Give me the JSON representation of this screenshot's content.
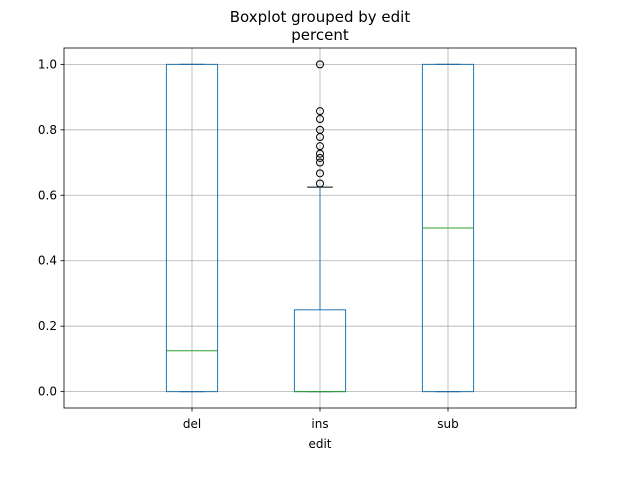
{
  "chart_data": {
    "type": "boxplot",
    "suptitle": "Boxplot grouped by edit",
    "title": "percent",
    "xlabel": "edit",
    "ylabel": "",
    "ylim": [
      -0.05,
      1.05
    ],
    "yticks": [
      0.0,
      0.2,
      0.4,
      0.6,
      0.8,
      1.0
    ],
    "ytick_labels": [
      "0.0",
      "0.2",
      "0.4",
      "0.6",
      "0.8",
      "1.0"
    ],
    "grid": true,
    "categories": [
      "del",
      "ins",
      "sub"
    ],
    "boxes": [
      {
        "name": "del",
        "whisker_low": 0.0,
        "q1": 0.0,
        "median": 0.125,
        "q3": 1.0,
        "whisker_high": 1.0,
        "outliers": []
      },
      {
        "name": "ins",
        "whisker_low": 0.0,
        "q1": 0.0,
        "median": 0.0,
        "q3": 0.25,
        "whisker_high": 0.625,
        "outliers": [
          0.636,
          0.667,
          0.7,
          0.714,
          0.727,
          0.75,
          0.778,
          0.8,
          0.833,
          0.857,
          1.0
        ]
      },
      {
        "name": "sub",
        "whisker_low": 0.0,
        "q1": 0.0,
        "median": 0.5,
        "q3": 1.0,
        "whisker_high": 1.0,
        "outliers": []
      }
    ],
    "colors": {
      "box": "#1f77b4",
      "median": "#2ca02c",
      "whisker": "#1f77b4",
      "cap": "#000000",
      "flier": "#000000",
      "grid": "#b0b0b0"
    }
  }
}
